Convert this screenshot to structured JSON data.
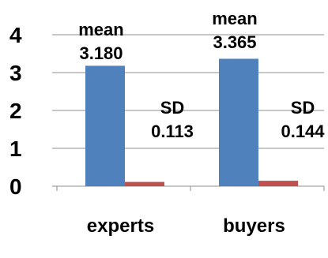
{
  "chart_data": {
    "type": "bar",
    "categories": [
      "experts",
      "buyers"
    ],
    "series": [
      {
        "values": [
          3.18,
          3.365
        ],
        "color": "#4F81BD"
      },
      {
        "values": [
          0.113,
          0.144
        ],
        "color": "#C0504D"
      }
    ],
    "ylim": [
      0,
      4
    ],
    "yticks": [
      0,
      1,
      2,
      3,
      4
    ],
    "ytick_labels": [
      "0",
      "1",
      "2",
      "3",
      "4"
    ],
    "grid": true,
    "legend": "none",
    "annotations": [
      {
        "category": "experts",
        "series": 0,
        "lines": [
          "mean",
          "3.180"
        ]
      },
      {
        "category": "experts",
        "series": 1,
        "lines": [
          "SD",
          "0.113"
        ]
      },
      {
        "category": "buyers",
        "series": 0,
        "lines": [
          "mean",
          "3.365"
        ]
      },
      {
        "category": "buyers",
        "series": 1,
        "lines": [
          "SD",
          "0.144"
        ]
      }
    ]
  }
}
